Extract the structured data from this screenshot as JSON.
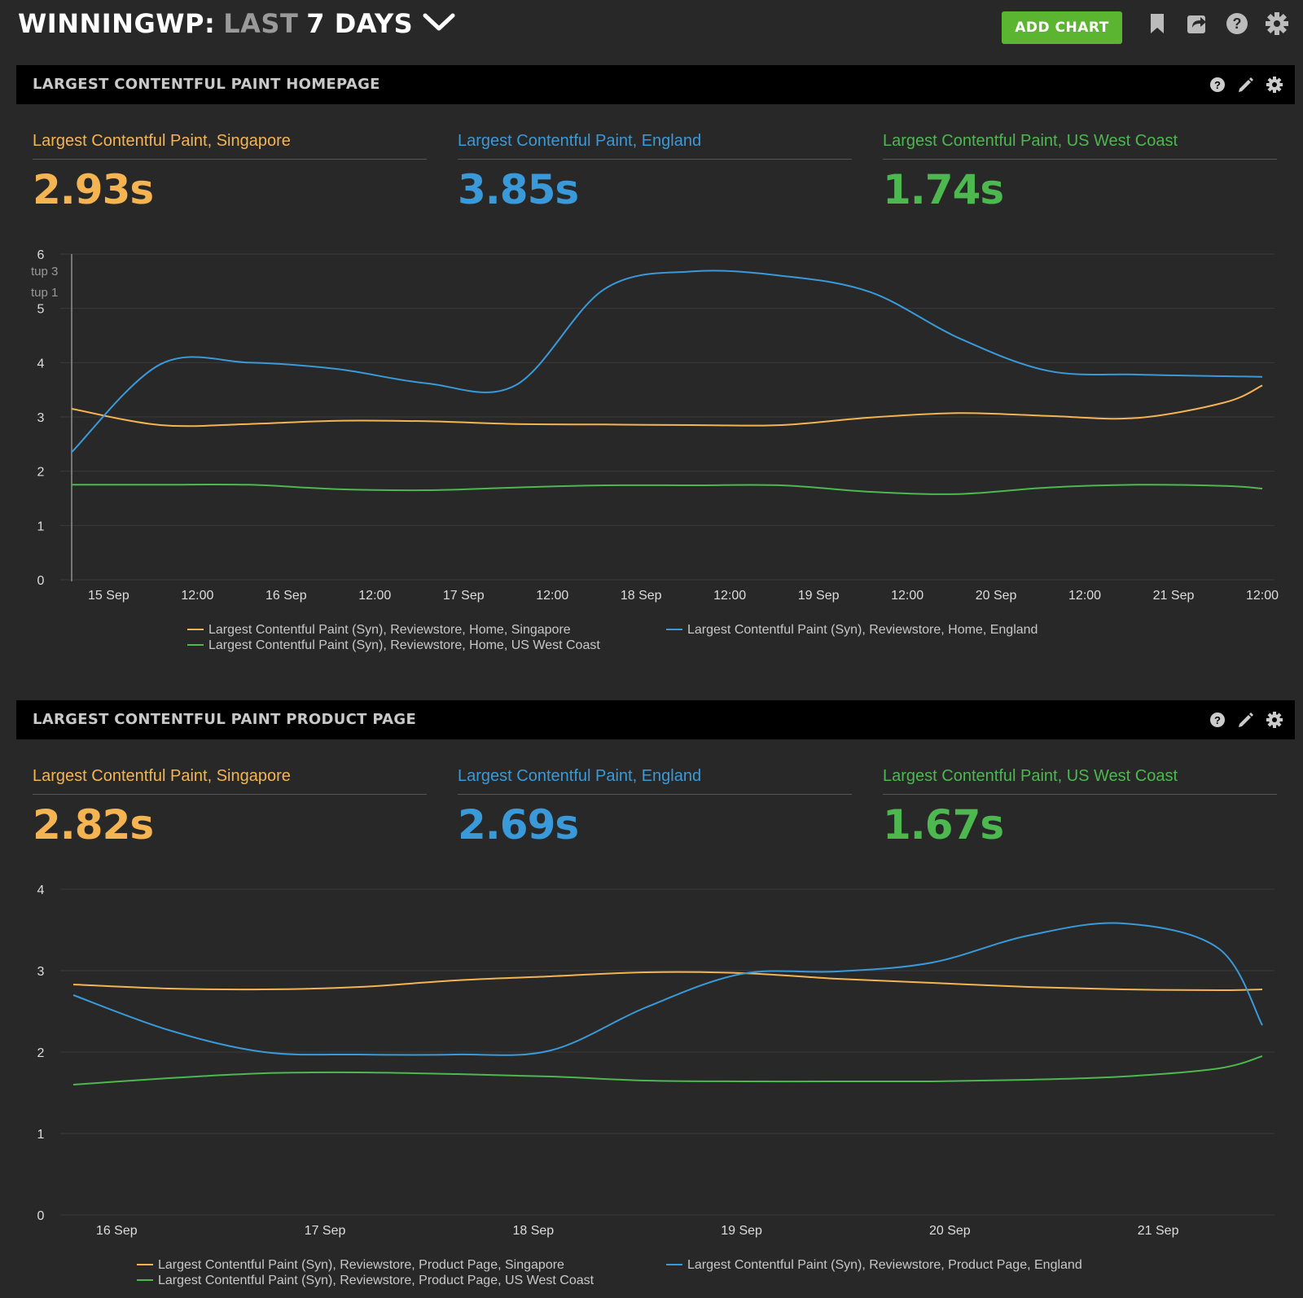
{
  "header": {
    "site": "WINNINGWP:",
    "range_prefix": "LAST",
    "range_value": "7 DAYS",
    "add_chart": "ADD CHART"
  },
  "colors": {
    "singapore": "#f5b452",
    "england": "#3a9ad9",
    "us_west": "#4cb84f",
    "accent": "#5cb531"
  },
  "panels": [
    {
      "title": "LARGEST CONTENTFUL PAINT HOMEPAGE",
      "stats": [
        {
          "label": "Largest Contentful Paint, Singapore",
          "value": "2.93s"
        },
        {
          "label": "Largest Contentful Paint, England",
          "value": "3.85s"
        },
        {
          "label": "Largest Contentful Paint, US West Coast",
          "value": "1.74s"
        }
      ],
      "annotations": [
        "tup 3",
        "tup 1"
      ],
      "legend": [
        "Largest Contentful Paint (Syn), Reviewstore, Home, Singapore",
        "Largest Contentful Paint (Syn), Reviewstore, Home, England",
        "Largest Contentful Paint (Syn), Reviewstore, Home, US West Coast"
      ]
    },
    {
      "title": "LARGEST CONTENTFUL PAINT PRODUCT PAGE",
      "stats": [
        {
          "label": "Largest Contentful Paint, Singapore",
          "value": "2.82s"
        },
        {
          "label": "Largest Contentful Paint, England",
          "value": "2.69s"
        },
        {
          "label": "Largest Contentful Paint, US West Coast",
          "value": "1.67s"
        }
      ],
      "legend": [
        "Largest Contentful Paint (Syn), Reviewstore, Product Page, Singapore",
        "Largest Contentful Paint (Syn), Reviewstore, Product Page, England",
        "Largest Contentful Paint (Syn), Reviewstore, Product Page, US West Coast"
      ]
    }
  ],
  "chart_data": [
    {
      "type": "line",
      "ylim": [
        0,
        6
      ],
      "yticks": [
        0,
        1,
        2,
        3,
        4,
        5,
        6
      ],
      "grid": true,
      "xlim": [
        "2023-09-14T19:00",
        "2023-09-21T12:00"
      ],
      "xticks": [
        {
          "t": "2023-09-15T00:00",
          "label": "15 Sep"
        },
        {
          "t": "2023-09-15T12:00",
          "label": "12:00"
        },
        {
          "t": "2023-09-16T00:00",
          "label": "16 Sep"
        },
        {
          "t": "2023-09-16T12:00",
          "label": "12:00"
        },
        {
          "t": "2023-09-17T00:00",
          "label": "17 Sep"
        },
        {
          "t": "2023-09-17T12:00",
          "label": "12:00"
        },
        {
          "t": "2023-09-18T00:00",
          "label": "18 Sep"
        },
        {
          "t": "2023-09-18T12:00",
          "label": "12:00"
        },
        {
          "t": "2023-09-19T00:00",
          "label": "19 Sep"
        },
        {
          "t": "2023-09-19T12:00",
          "label": "12:00"
        },
        {
          "t": "2023-09-20T00:00",
          "label": "20 Sep"
        },
        {
          "t": "2023-09-20T12:00",
          "label": "12:00"
        },
        {
          "t": "2023-09-21T00:00",
          "label": "21 Sep"
        },
        {
          "t": "2023-09-21T12:00",
          "label": "12:00"
        }
      ],
      "x": [
        "2023-09-14T19:00",
        "2023-09-15T07:00",
        "2023-09-15T19:00",
        "2023-09-16T07:00",
        "2023-09-16T19:00",
        "2023-09-17T07:00",
        "2023-09-17T19:00",
        "2023-09-18T07:00",
        "2023-09-18T19:00",
        "2023-09-19T07:00",
        "2023-09-19T19:00",
        "2023-09-20T07:00",
        "2023-09-20T19:00",
        "2023-09-21T07:00",
        "2023-09-21T12:00"
      ],
      "series": [
        {
          "name": "Largest Contentful Paint (Syn), Reviewstore, Home, Singapore",
          "color": "#f5b452",
          "values": [
            3.15,
            2.85,
            2.87,
            2.93,
            2.92,
            2.87,
            2.86,
            2.85,
            2.85,
            2.99,
            3.07,
            3.02,
            2.98,
            3.27,
            3.58
          ]
        },
        {
          "name": "Largest Contentful Paint (Syn), Reviewstore, Home, England",
          "color": "#3a9ad9",
          "values": [
            2.35,
            3.97,
            4.0,
            3.88,
            3.62,
            3.58,
            5.35,
            5.68,
            5.6,
            5.3,
            4.45,
            3.85,
            3.78,
            3.75,
            3.74
          ]
        },
        {
          "name": "Largest Contentful Paint (Syn), Reviewstore, Home, US West Coast",
          "color": "#4cb84f",
          "values": [
            1.75,
            1.75,
            1.75,
            1.67,
            1.65,
            1.7,
            1.74,
            1.74,
            1.74,
            1.62,
            1.58,
            1.7,
            1.75,
            1.73,
            1.68
          ]
        }
      ]
    },
    {
      "type": "line",
      "ylim": [
        0,
        4
      ],
      "yticks": [
        0,
        1,
        2,
        3,
        4
      ],
      "grid": true,
      "xlim": [
        "2023-09-15T19:00",
        "2023-09-21T12:00"
      ],
      "xticks": [
        {
          "t": "2023-09-16T00:00",
          "label": "16 Sep"
        },
        {
          "t": "2023-09-17T00:00",
          "label": "17 Sep"
        },
        {
          "t": "2023-09-18T00:00",
          "label": "18 Sep"
        },
        {
          "t": "2023-09-19T00:00",
          "label": "19 Sep"
        },
        {
          "t": "2023-09-20T00:00",
          "label": "20 Sep"
        },
        {
          "t": "2023-09-21T00:00",
          "label": "21 Sep"
        }
      ],
      "x": [
        "2023-09-15T19:00",
        "2023-09-16T06:00",
        "2023-09-16T17:00",
        "2023-09-17T04:00",
        "2023-09-17T15:00",
        "2023-09-18T02:00",
        "2023-09-18T13:00",
        "2023-09-19T00:00",
        "2023-09-19T11:00",
        "2023-09-19T22:00",
        "2023-09-20T09:00",
        "2023-09-20T20:00",
        "2023-09-21T07:00",
        "2023-09-21T12:00"
      ],
      "series": [
        {
          "name": "Largest Contentful Paint (Syn), Reviewstore, Product Page, Singapore",
          "color": "#f5b452",
          "values": [
            2.83,
            2.78,
            2.77,
            2.8,
            2.88,
            2.93,
            2.98,
            2.97,
            2.9,
            2.85,
            2.8,
            2.77,
            2.76,
            2.77
          ]
        },
        {
          "name": "Largest Contentful Paint (Syn), Reviewstore, Product Page, England",
          "color": "#3a9ad9",
          "values": [
            2.7,
            2.27,
            2.0,
            1.97,
            1.97,
            2.02,
            2.55,
            2.96,
            2.99,
            3.1,
            3.43,
            3.58,
            3.27,
            2.33
          ]
        },
        {
          "name": "Largest Contentful Paint (Syn), Reviewstore, Product Page, US West Coast",
          "color": "#4cb84f",
          "values": [
            1.6,
            1.68,
            1.74,
            1.75,
            1.73,
            1.7,
            1.65,
            1.64,
            1.64,
            1.64,
            1.66,
            1.7,
            1.8,
            1.95
          ]
        }
      ]
    }
  ]
}
